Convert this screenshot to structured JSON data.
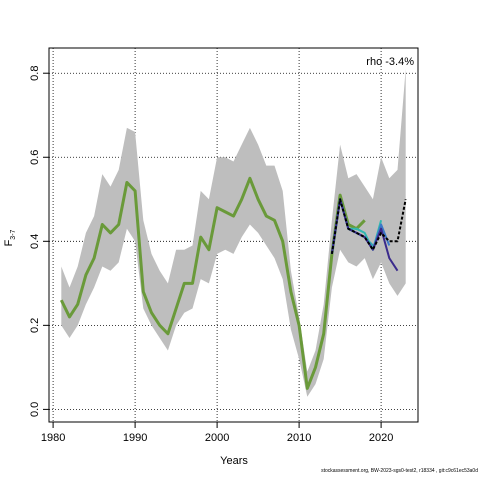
{
  "chart_data": {
    "type": "line",
    "xlabel": "Years",
    "ylabel_main": "F",
    "ylabel_sub": "3-7",
    "annotation": "rho -3.4%",
    "xlim": [
      1979.5,
      2024.5
    ],
    "ylim": [
      -0.03,
      0.86
    ],
    "xticks": [
      1980,
      1990,
      2000,
      2010,
      2020
    ],
    "yticks": [
      0.0,
      0.2,
      0.4,
      0.6,
      0.8
    ],
    "grid": true,
    "band": {
      "x": [
        1981,
        1982,
        1983,
        1984,
        1985,
        1986,
        1987,
        1988,
        1989,
        1990,
        1991,
        1992,
        1993,
        1994,
        1995,
        1996,
        1997,
        1998,
        1999,
        2000,
        2001,
        2002,
        2003,
        2004,
        2005,
        2006,
        2007,
        2008,
        2009,
        2010,
        2011,
        2012,
        2013,
        2014,
        2015,
        2016,
        2017,
        2018,
        2019,
        2020,
        2021,
        2022,
        2023
      ],
      "upper": [
        0.34,
        0.29,
        0.34,
        0.42,
        0.46,
        0.56,
        0.53,
        0.57,
        0.67,
        0.66,
        0.45,
        0.37,
        0.33,
        0.3,
        0.38,
        0.38,
        0.39,
        0.52,
        0.5,
        0.6,
        0.6,
        0.59,
        0.63,
        0.67,
        0.63,
        0.58,
        0.58,
        0.52,
        0.33,
        0.22,
        0.09,
        0.14,
        0.25,
        0.45,
        0.63,
        0.55,
        0.56,
        0.53,
        0.5,
        0.6,
        0.55,
        0.57,
        0.81
      ],
      "lower": [
        0.2,
        0.17,
        0.2,
        0.25,
        0.29,
        0.34,
        0.33,
        0.35,
        0.43,
        0.4,
        0.24,
        0.2,
        0.17,
        0.14,
        0.2,
        0.23,
        0.24,
        0.31,
        0.3,
        0.37,
        0.38,
        0.37,
        0.41,
        0.44,
        0.42,
        0.39,
        0.36,
        0.31,
        0.19,
        0.12,
        0.03,
        0.06,
        0.12,
        0.29,
        0.38,
        0.35,
        0.34,
        0.36,
        0.31,
        0.35,
        0.3,
        0.27,
        0.3
      ]
    },
    "series": [
      {
        "color": "#6a9a3a",
        "x": [
          1981,
          1982,
          1983,
          1984,
          1985,
          1986,
          1987,
          1988,
          1989,
          1990,
          1991,
          1992,
          1993,
          1994,
          1995,
          1996,
          1997,
          1998,
          1999,
          2000,
          2001,
          2002,
          2003,
          2004,
          2005,
          2006,
          2007,
          2008,
          2009,
          2010,
          2011,
          2012,
          2013,
          2014,
          2015,
          2016,
          2017,
          2018
        ],
        "values": [
          0.26,
          0.22,
          0.25,
          0.32,
          0.36,
          0.44,
          0.42,
          0.44,
          0.54,
          0.52,
          0.28,
          0.23,
          0.2,
          0.18,
          0.24,
          0.3,
          0.3,
          0.41,
          0.38,
          0.48,
          0.47,
          0.46,
          0.5,
          0.55,
          0.5,
          0.46,
          0.45,
          0.4,
          0.28,
          0.2,
          0.05,
          0.1,
          0.18,
          0.37,
          0.51,
          0.44,
          0.43,
          0.45
        ]
      },
      {
        "color": "#1c8c8c",
        "x": [
          2014,
          2015,
          2016,
          2017,
          2018
        ],
        "values": [
          0.37,
          0.5,
          0.43,
          0.42,
          0.41
        ]
      },
      {
        "color": "#34a0c0",
        "x": [
          2014,
          2015,
          2016,
          2017,
          2018,
          2019
        ],
        "values": [
          0.37,
          0.5,
          0.43,
          0.42,
          0.41,
          0.39
        ]
      },
      {
        "color": "#2fb8b0",
        "x": [
          2014,
          2015,
          2016,
          2017,
          2018,
          2019,
          2020
        ],
        "values": [
          0.37,
          0.5,
          0.43,
          0.43,
          0.42,
          0.38,
          0.45
        ]
      },
      {
        "color": "#3c78c8",
        "x": [
          2014,
          2015,
          2016,
          2017,
          2018,
          2019,
          2020,
          2021
        ],
        "values": [
          0.37,
          0.5,
          0.43,
          0.42,
          0.41,
          0.38,
          0.44,
          0.39
        ]
      },
      {
        "color": "#3a2a8c",
        "x": [
          2014,
          2015,
          2016,
          2017,
          2018,
          2019,
          2020,
          2021,
          2022
        ],
        "values": [
          0.37,
          0.5,
          0.43,
          0.42,
          0.41,
          0.38,
          0.43,
          0.36,
          0.33
        ]
      },
      {
        "color": "#000000",
        "x": [
          2014,
          2015,
          2016,
          2017,
          2018,
          2019,
          2020,
          2021,
          2022,
          2023
        ],
        "values": [
          0.37,
          0.5,
          0.43,
          0.42,
          0.41,
          0.38,
          0.42,
          0.4,
          0.4,
          0.5
        ]
      }
    ],
    "footer": "stockassessment.org, BW-2023-sgs0-test2, r18334 , git:c9c61ec53a0d"
  }
}
